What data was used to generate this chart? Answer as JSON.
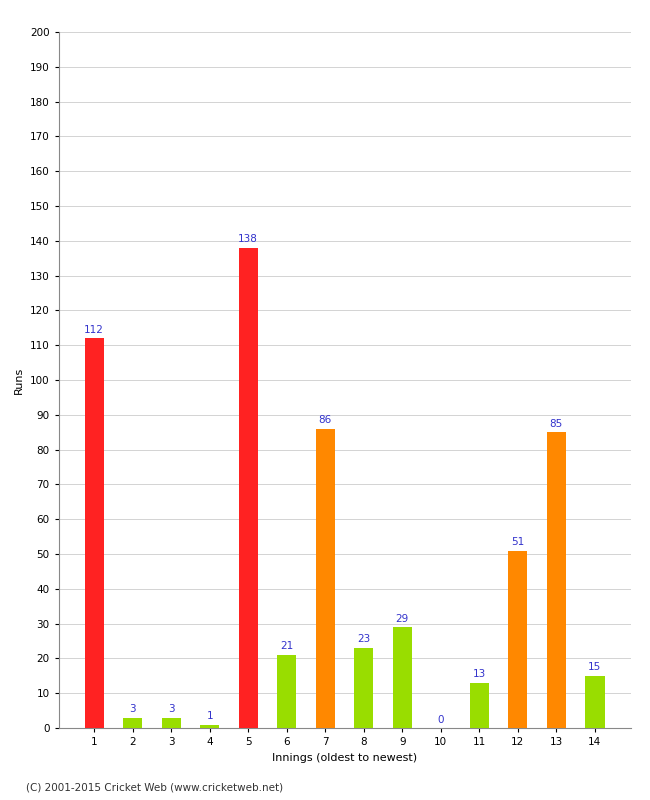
{
  "categories": [
    "1",
    "2",
    "3",
    "4",
    "5",
    "6",
    "7",
    "8",
    "9",
    "10",
    "11",
    "12",
    "13",
    "14"
  ],
  "values": [
    112,
    3,
    3,
    1,
    138,
    21,
    86,
    23,
    29,
    0,
    13,
    51,
    85,
    15
  ],
  "bar_colors": [
    "#ff2222",
    "#99dd00",
    "#99dd00",
    "#99dd00",
    "#ff2222",
    "#99dd00",
    "#ff8800",
    "#99dd00",
    "#99dd00",
    "#99dd00",
    "#99dd00",
    "#ff8800",
    "#ff8800",
    "#99dd00"
  ],
  "xlabel": "Innings (oldest to newest)",
  "ylabel": "Runs",
  "ylim": [
    0,
    200
  ],
  "yticks": [
    0,
    10,
    20,
    30,
    40,
    50,
    60,
    70,
    80,
    90,
    100,
    110,
    120,
    130,
    140,
    150,
    160,
    170,
    180,
    190,
    200
  ],
  "label_color": "#3333cc",
  "label_fontsize": 7.5,
  "axis_label_fontsize": 8,
  "tick_fontsize": 7.5,
  "background_color": "#ffffff",
  "footer_text": "(C) 2001-2015 Cricket Web (www.cricketweb.net)"
}
